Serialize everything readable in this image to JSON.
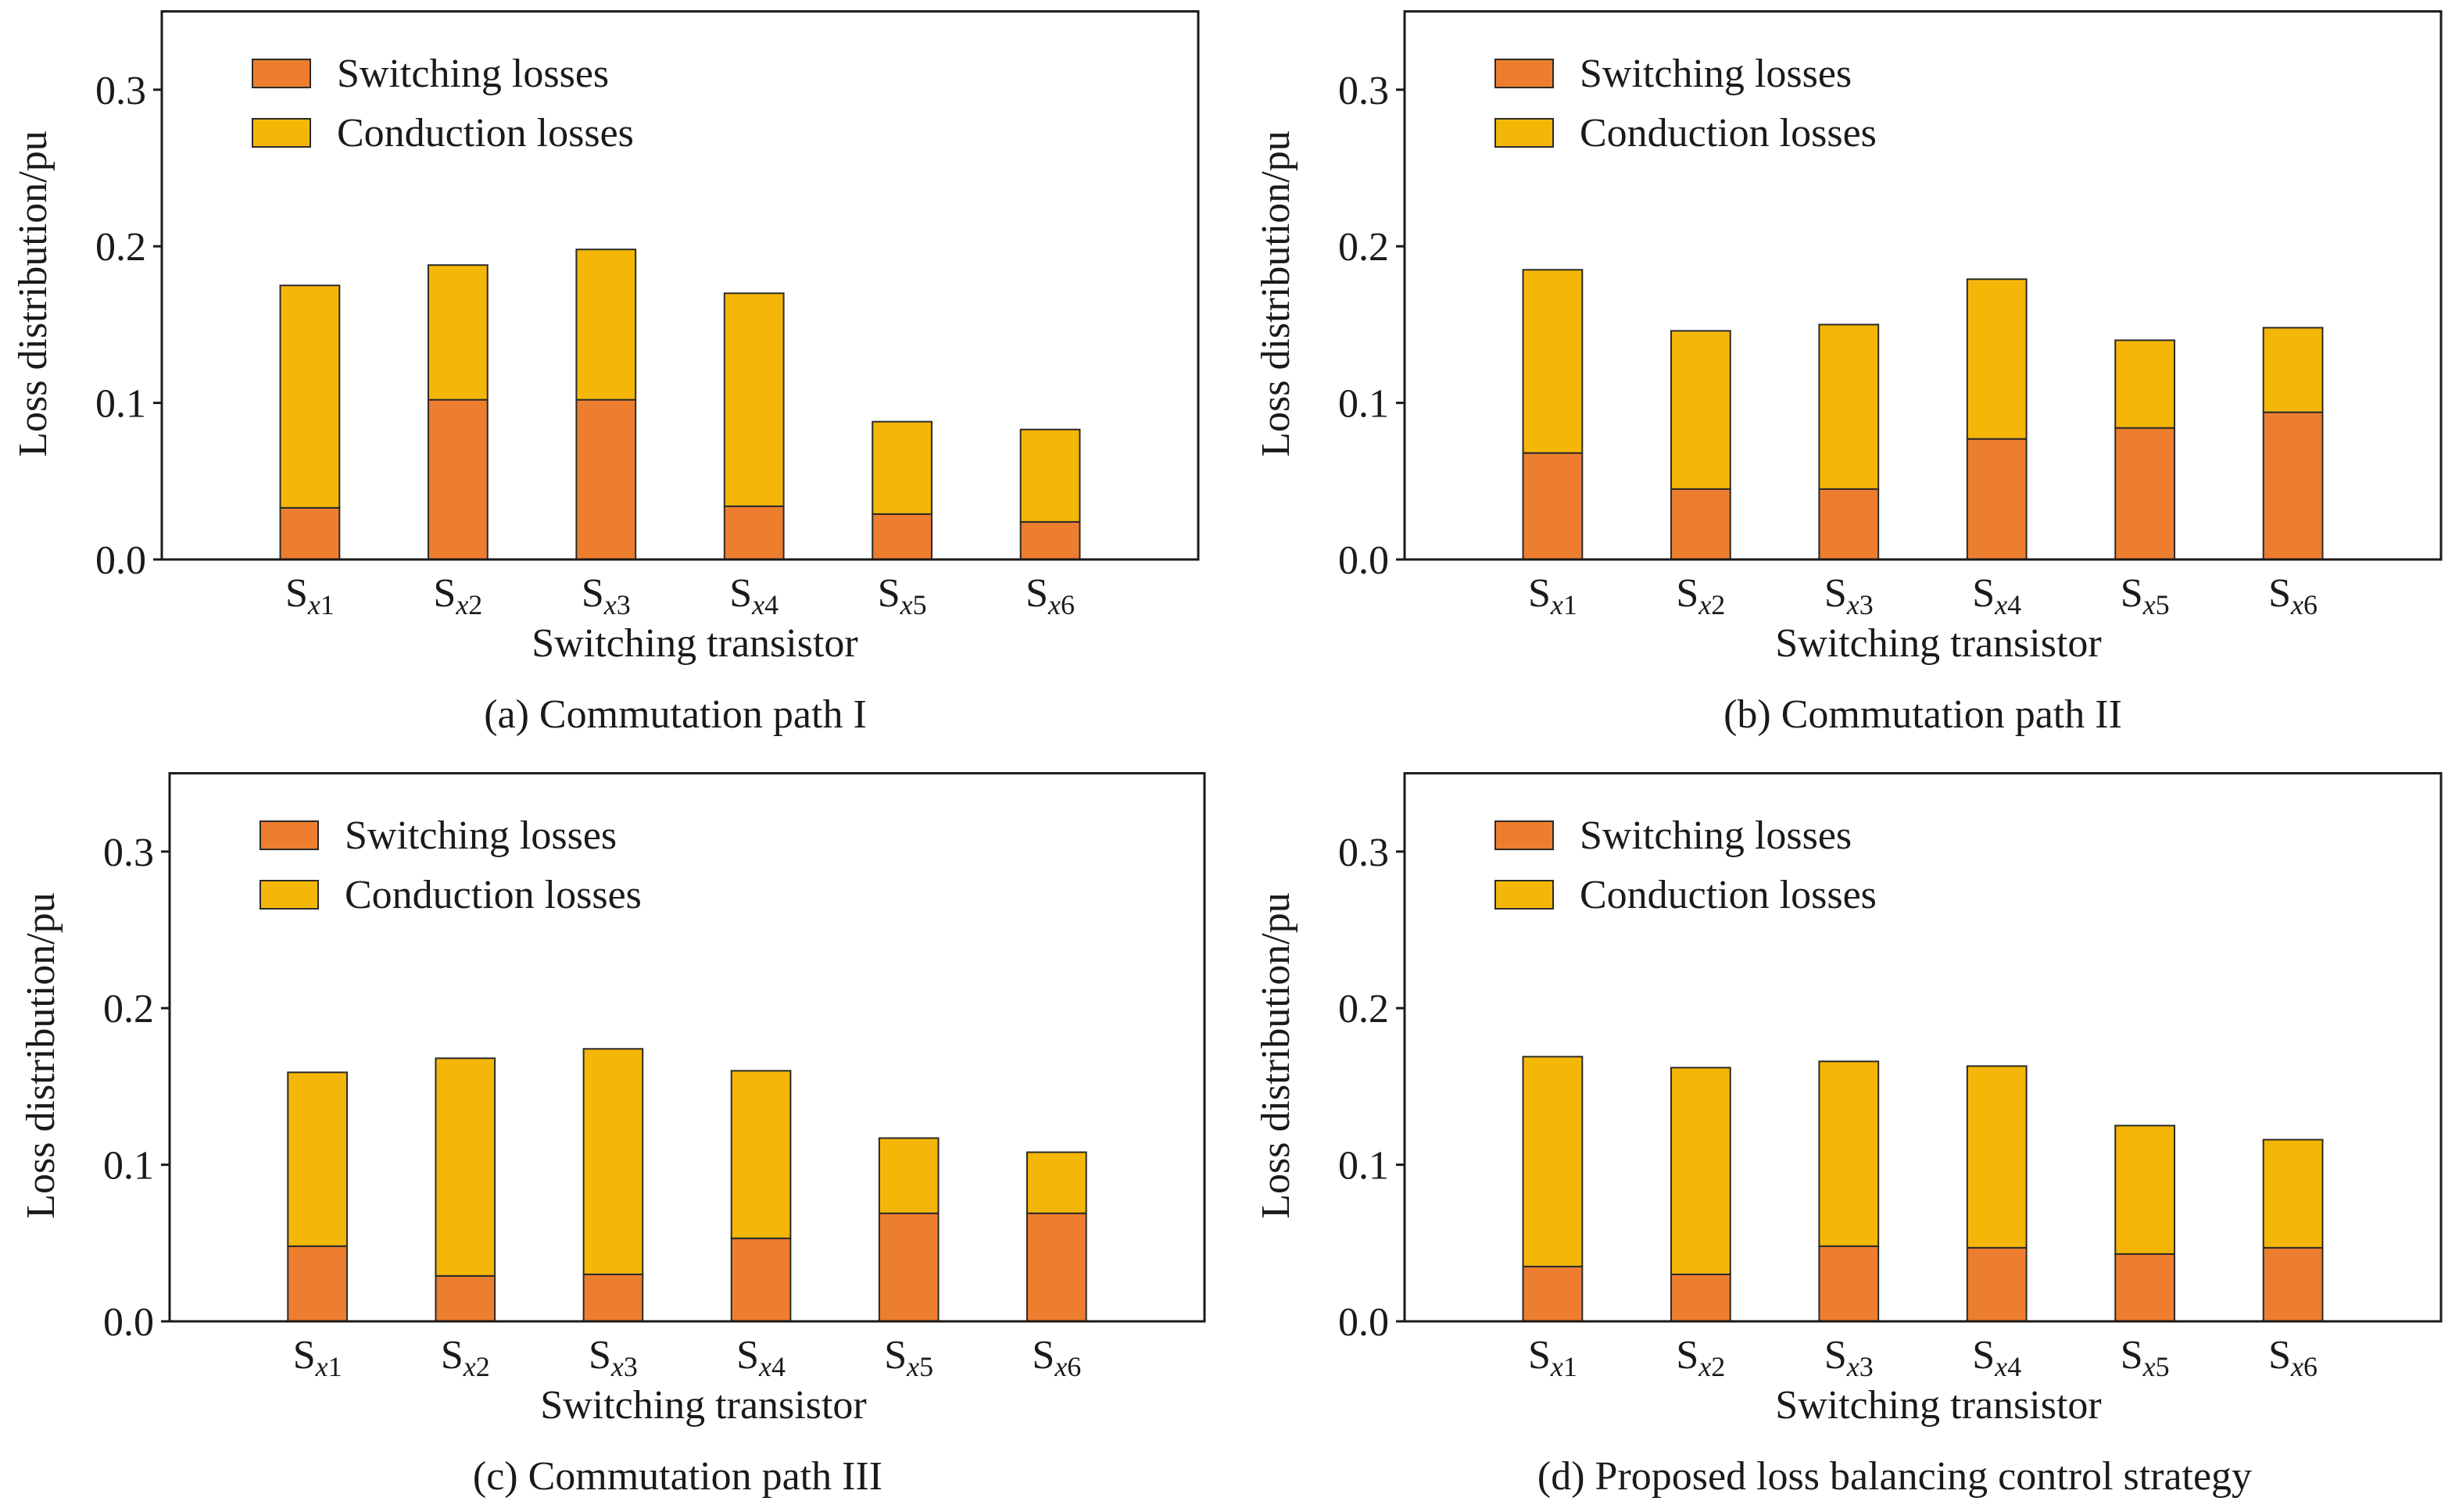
{
  "chart_data": [
    {
      "type": "bar",
      "stacked": true,
      "caption": "(a) Commutation path I",
      "xlabel": "Switching transistor",
      "ylabel": "Loss distribution/pu",
      "ylim": [
        0,
        0.35
      ],
      "yticks": [
        0,
        0.1,
        0.2,
        0.3
      ],
      "ytick_labels": [
        "0.0",
        "0.1",
        "0.2",
        "0.3"
      ],
      "grid": false,
      "legend": "top-left",
      "categories": [
        {
          "label": "S",
          "sub_var": "x",
          "sub_num": "1"
        },
        {
          "label": "S",
          "sub_var": "x",
          "sub_num": "2"
        },
        {
          "label": "S",
          "sub_var": "x",
          "sub_num": "3"
        },
        {
          "label": "S",
          "sub_var": "x",
          "sub_num": "4"
        },
        {
          "label": "S",
          "sub_var": "x",
          "sub_num": "5"
        },
        {
          "label": "S",
          "sub_var": "x",
          "sub_num": "6"
        }
      ],
      "series": [
        {
          "name": "Switching losses",
          "color": "#EE7E2F",
          "values": [
            0.033,
            0.102,
            0.102,
            0.034,
            0.029,
            0.024
          ]
        },
        {
          "name": "Conduction losses",
          "color": "#F5B707",
          "values": [
            0.142,
            0.086,
            0.096,
            0.136,
            0.059,
            0.059
          ]
        }
      ]
    },
    {
      "type": "bar",
      "stacked": true,
      "caption": "(b) Commutation path II",
      "xlabel": "Switching transistor",
      "ylabel": "Loss distribution/pu",
      "ylim": [
        0,
        0.35
      ],
      "yticks": [
        0,
        0.1,
        0.2,
        0.3
      ],
      "ytick_labels": [
        "0.0",
        "0.1",
        "0.2",
        "0.3"
      ],
      "grid": false,
      "legend": "top-left",
      "categories": [
        {
          "label": "S",
          "sub_var": "x",
          "sub_num": "1"
        },
        {
          "label": "S",
          "sub_var": "x",
          "sub_num": "2"
        },
        {
          "label": "S",
          "sub_var": "x",
          "sub_num": "3"
        },
        {
          "label": "S",
          "sub_var": "x",
          "sub_num": "4"
        },
        {
          "label": "S",
          "sub_var": "x",
          "sub_num": "5"
        },
        {
          "label": "S",
          "sub_var": "x",
          "sub_num": "6"
        }
      ],
      "series": [
        {
          "name": "Switching losses",
          "color": "#EE7E2F",
          "values": [
            0.068,
            0.045,
            0.045,
            0.077,
            0.084,
            0.094
          ]
        },
        {
          "name": "Conduction losses",
          "color": "#F5B707",
          "values": [
            0.117,
            0.101,
            0.105,
            0.102,
            0.056,
            0.054
          ]
        }
      ]
    },
    {
      "type": "bar",
      "stacked": true,
      "caption": "(c) Commutation path III",
      "xlabel": "Switching transistor",
      "ylabel": "Loss distribution/pu",
      "ylim": [
        0,
        0.35
      ],
      "yticks": [
        0,
        0.1,
        0.2,
        0.3
      ],
      "ytick_labels": [
        "0.0",
        "0.1",
        "0.2",
        "0.3"
      ],
      "grid": false,
      "legend": "top-left",
      "categories": [
        {
          "label": "S",
          "sub_var": "x",
          "sub_num": "1"
        },
        {
          "label": "S",
          "sub_var": "x",
          "sub_num": "2"
        },
        {
          "label": "S",
          "sub_var": "x",
          "sub_num": "3"
        },
        {
          "label": "S",
          "sub_var": "x",
          "sub_num": "4"
        },
        {
          "label": "S",
          "sub_var": "x",
          "sub_num": "5"
        },
        {
          "label": "S",
          "sub_var": "x",
          "sub_num": "6"
        }
      ],
      "series": [
        {
          "name": "Switching losses",
          "color": "#EE7E2F",
          "values": [
            0.048,
            0.029,
            0.03,
            0.053,
            0.069,
            0.069
          ]
        },
        {
          "name": "Conduction losses",
          "color": "#F5B707",
          "values": [
            0.111,
            0.139,
            0.144,
            0.107,
            0.048,
            0.039
          ]
        }
      ]
    },
    {
      "type": "bar",
      "stacked": true,
      "caption": "(d) Proposed loss balancing control strategy",
      "xlabel": "Switching transistor",
      "ylabel": "Loss distribution/pu",
      "ylim": [
        0,
        0.35
      ],
      "yticks": [
        0,
        0.1,
        0.2,
        0.3
      ],
      "ytick_labels": [
        "0.0",
        "0.1",
        "0.2",
        "0.3"
      ],
      "grid": false,
      "legend": "top-left",
      "categories": [
        {
          "label": "S",
          "sub_var": "x",
          "sub_num": "1"
        },
        {
          "label": "S",
          "sub_var": "x",
          "sub_num": "2"
        },
        {
          "label": "S",
          "sub_var": "x",
          "sub_num": "3"
        },
        {
          "label": "S",
          "sub_var": "x",
          "sub_num": "4"
        },
        {
          "label": "S",
          "sub_var": "x",
          "sub_num": "5"
        },
        {
          "label": "S",
          "sub_var": "x",
          "sub_num": "6"
        }
      ],
      "series": [
        {
          "name": "Switching losses",
          "color": "#EE7E2F",
          "values": [
            0.035,
            0.03,
            0.048,
            0.047,
            0.043,
            0.047
          ]
        },
        {
          "name": "Conduction losses",
          "color": "#F5B707",
          "values": [
            0.134,
            0.132,
            0.118,
            0.116,
            0.082,
            0.069
          ]
        }
      ]
    }
  ]
}
